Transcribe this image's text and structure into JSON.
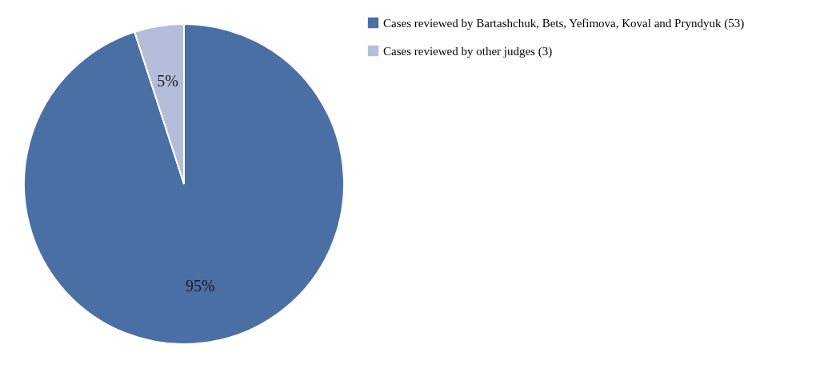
{
  "chart_data": {
    "type": "pie",
    "categories": [
      "Cases reviewed by Bartashchuk, Bets, Yefimova, Koval and Pryndyuk (53)",
      "Cases reviewed by other judges (3)"
    ],
    "values": [
      95,
      5
    ],
    "value_labels": [
      "95%",
      "5%"
    ],
    "colors": [
      "#4a6fa5",
      "#b4bedb"
    ],
    "legend": "right"
  }
}
